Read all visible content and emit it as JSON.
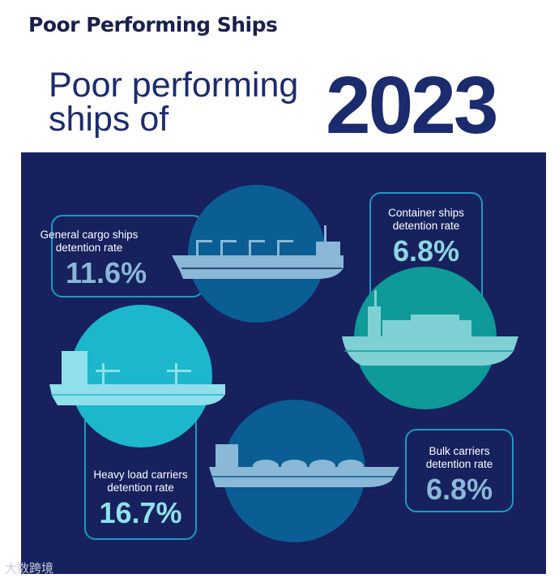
{
  "page_title": "Poor Performing Ships",
  "heading": {
    "line1": "Poor performing",
    "line2": "ships of",
    "year": "2023"
  },
  "cards": [
    {
      "label1": "General cargo ships",
      "label2": "detention rate",
      "value": "11.6%"
    },
    {
      "label1": "Container ships",
      "label2": "detention rate",
      "value": "6.8%"
    },
    {
      "label1": "Heavy load carriers",
      "label2": "detention rate",
      "value": "16.7%"
    },
    {
      "label1": "Bulk carriers",
      "label2": "detention rate",
      "value": "6.8%"
    }
  ],
  "watermark": "大数跨境",
  "colors": {
    "navy": "#16215e",
    "value_cyan": "#8fd6e0",
    "circle_blue": "#0b5e93",
    "circle_teal": "#0e9a98",
    "circle_cyan": "#1cb7cc"
  }
}
